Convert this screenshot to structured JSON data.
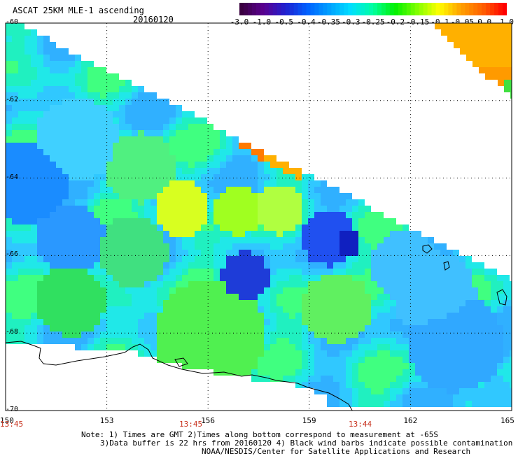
{
  "title": "ASCAT 25KM MLE-1 ascending",
  "date": "20160120",
  "colorbar": {
    "labels": [
      "-3.0",
      "-1.0",
      "-0.5",
      "-0.4",
      "-0.35",
      "-0.3",
      "-0.25",
      "-0.2",
      "-0.15",
      "-0.1",
      "-0.05",
      "0.0",
      "1.0"
    ],
    "colors": [
      "#3a0040",
      "#5a0090",
      "#2020d0",
      "#0060ff",
      "#00a0ff",
      "#00e0ff",
      "#00ffa0",
      "#00f000",
      "#80ff00",
      "#ffff00",
      "#ffa000",
      "#ff6000",
      "#ff0000"
    ]
  },
  "axes": {
    "lat_labels": [
      "-60",
      "-62",
      "-64",
      "-66",
      "-68",
      "-70"
    ],
    "lon_labels": [
      "150",
      "153",
      "156",
      "159",
      "162",
      "165"
    ],
    "time_labels": [
      "13:45",
      "13:45",
      "13:44"
    ],
    "lat_range": [
      -70,
      -60
    ],
    "lon_range": [
      150,
      165
    ]
  },
  "notes": {
    "line1": "Note: 1) Times are GMT 2)Times along bottom correspond to measurement at -65S",
    "line2": "3)Data buffer is 22 hrs from 20160120 4) Black wind barbs indicate possible contamination",
    "line3": "NOAA/NESDIS/Center for Satellite Applications and Research"
  }
}
